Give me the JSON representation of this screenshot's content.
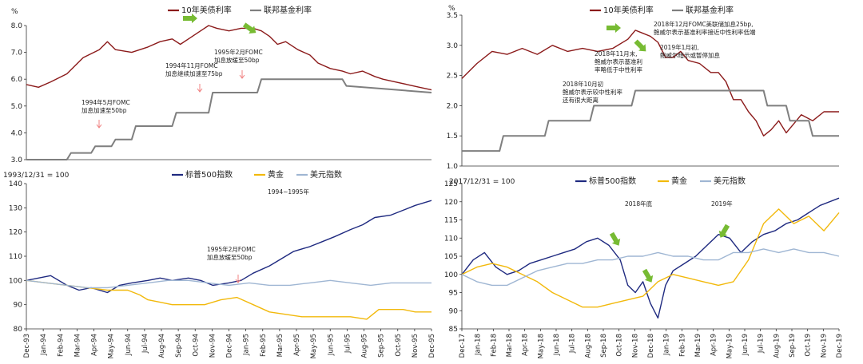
{
  "colors": {
    "treasury": "#8b1a1a",
    "fedfunds": "#7f7f7f",
    "sp500": "#1f2a80",
    "gold": "#f2b90c",
    "usd": "#9fb6d3",
    "arrow_green": "#77bb33",
    "arrow_red": "#f08080"
  },
  "chart_data": [
    {
      "id": "tl",
      "type": "line",
      "unit_label": "%",
      "ylim": [
        3.0,
        8.0
      ],
      "yticks": [
        "3.0",
        "4.0",
        "5.0",
        "6.0",
        "7.0",
        "8.0"
      ],
      "series": [
        {
          "name": "10年美债利率",
          "color_key": "treasury",
          "x": [
            0,
            0.03,
            0.06,
            0.1,
            0.14,
            0.18,
            0.2,
            0.22,
            0.26,
            0.3,
            0.33,
            0.36,
            0.38,
            0.4,
            0.43,
            0.45,
            0.47,
            0.5,
            0.53,
            0.56,
            0.58,
            0.6,
            0.62,
            0.64,
            0.67,
            0.7,
            0.72,
            0.75,
            0.78,
            0.8,
            0.83,
            0.86,
            0.88,
            0.91,
            0.94,
            0.97,
            1
          ],
          "y": [
            5.8,
            5.7,
            5.9,
            6.2,
            6.8,
            7.1,
            7.4,
            7.1,
            7.0,
            7.2,
            7.4,
            7.5,
            7.3,
            7.5,
            7.8,
            8.0,
            7.9,
            7.8,
            7.9,
            7.9,
            7.8,
            7.6,
            7.3,
            7.4,
            7.1,
            6.9,
            6.6,
            6.4,
            6.3,
            6.2,
            6.3,
            6.1,
            6.0,
            5.9,
            5.8,
            5.7,
            5.6
          ]
        },
        {
          "name": "联邦基金利率",
          "color_key": "fedfunds",
          "x": [
            0,
            0.04,
            0.1,
            0.11,
            0.16,
            0.17,
            0.21,
            0.22,
            0.26,
            0.27,
            0.36,
            0.37,
            0.45,
            0.46,
            0.57,
            0.58,
            0.78,
            0.79,
            1
          ],
          "y": [
            3.0,
            3.0,
            3.0,
            3.25,
            3.25,
            3.5,
            3.5,
            3.75,
            3.75,
            4.25,
            4.25,
            4.75,
            4.75,
            5.5,
            5.5,
            6.0,
            6.0,
            5.75,
            5.5
          ]
        }
      ],
      "x_labels": [],
      "annotations": [
        {
          "text": "1994年5月FOMC",
          "text2": "加息加速至50bp"
        },
        {
          "text": "1994年11月FOMC",
          "text2": "加息继续加速至75bp"
        },
        {
          "text": "1995年2月FOMC",
          "text2": "加息放缓至50bp"
        }
      ]
    },
    {
      "id": "tr",
      "type": "line",
      "unit_label": "%",
      "ylim": [
        1.0,
        3.5
      ],
      "yticks": [
        "1.0",
        "1.5",
        "2.0",
        "2.5",
        "3.0",
        "3.5"
      ],
      "series": [
        {
          "name": "10年美债利率",
          "color_key": "treasury",
          "x": [
            0,
            0.04,
            0.08,
            0.12,
            0.16,
            0.2,
            0.24,
            0.28,
            0.32,
            0.36,
            0.4,
            0.44,
            0.46,
            0.48,
            0.5,
            0.52,
            0.54,
            0.56,
            0.58,
            0.6,
            0.63,
            0.66,
            0.68,
            0.7,
            0.72,
            0.74,
            0.76,
            0.78,
            0.8,
            0.82,
            0.84,
            0.86,
            0.88,
            0.9,
            0.93,
            0.96,
            1
          ],
          "y": [
            2.45,
            2.7,
            2.9,
            2.85,
            2.95,
            2.85,
            3.0,
            2.9,
            2.95,
            2.9,
            2.95,
            3.1,
            3.25,
            3.2,
            3.15,
            3.05,
            2.8,
            2.8,
            2.9,
            2.75,
            2.7,
            2.55,
            2.55,
            2.4,
            2.1,
            2.1,
            1.9,
            1.75,
            1.5,
            1.6,
            1.75,
            1.55,
            1.7,
            1.85,
            1.75,
            1.9,
            1.9
          ]
        },
        {
          "name": "联邦基金利率",
          "color_key": "fedfunds",
          "x": [
            0,
            0.1,
            0.11,
            0.22,
            0.23,
            0.34,
            0.35,
            0.45,
            0.46,
            0.55,
            0.56,
            0.8,
            0.81,
            0.86,
            0.87,
            0.92,
            0.93,
            1
          ],
          "y": [
            1.25,
            1.25,
            1.5,
            1.5,
            1.75,
            1.75,
            2.0,
            2.0,
            2.25,
            2.25,
            2.25,
            2.25,
            2.0,
            2.0,
            1.75,
            1.75,
            1.5,
            1.5
          ]
        }
      ],
      "x_labels": [],
      "annotations": [
        {
          "text": "2018年12月FOMC美联储加息25bp,",
          "text2": "鲍威尔表示基准利率接近中性利率低端"
        },
        {
          "text": "2018年11月末,",
          "text2": "鲍威尔表示基准利",
          "text3": "率略低于中性利率"
        },
        {
          "text": "2019年1月初,",
          "text2": "鲍威尔暗示或暂停加息"
        },
        {
          "text": "2018年10月初",
          "text2": "鲍威尔表示较中性利率",
          "text3": "还有很大距离"
        }
      ]
    },
    {
      "id": "bl",
      "type": "line",
      "base_label": "1993/12/31 = 100",
      "ylim": [
        80,
        140
      ],
      "yticks": [
        "80",
        "90",
        "100",
        "110",
        "120",
        "130",
        "140"
      ],
      "series": [
        {
          "name": "标普500指数",
          "color_key": "sp500",
          "x": [
            0,
            0.03,
            0.06,
            0.1,
            0.13,
            0.16,
            0.2,
            0.23,
            0.26,
            0.3,
            0.33,
            0.36,
            0.4,
            0.43,
            0.46,
            0.5,
            0.53,
            0.56,
            0.6,
            0.63,
            0.66,
            0.7,
            0.73,
            0.76,
            0.8,
            0.83,
            0.86,
            0.9,
            0.93,
            0.96,
            1
          ],
          "y": [
            100,
            101,
            102,
            98,
            96,
            97,
            95,
            98,
            99,
            100,
            101,
            100,
            101,
            100,
            98,
            99,
            100,
            103,
            106,
            109,
            112,
            114,
            116,
            118,
            121,
            123,
            126,
            127,
            129,
            131,
            133
          ]
        },
        {
          "name": "黄金",
          "color_key": "gold",
          "x": [
            0,
            0.05,
            0.1,
            0.15,
            0.2,
            0.25,
            0.28,
            0.3,
            0.33,
            0.36,
            0.4,
            0.44,
            0.48,
            0.52,
            0.56,
            0.6,
            0.64,
            0.68,
            0.72,
            0.76,
            0.8,
            0.84,
            0.87,
            0.9,
            0.93,
            0.96,
            1
          ],
          "y": [
            100,
            99,
            98,
            97,
            96,
            96,
            94,
            92,
            91,
            90,
            90,
            90,
            92,
            93,
            90,
            87,
            86,
            85,
            85,
            85,
            85,
            84,
            88,
            88,
            88,
            87,
            87
          ]
        },
        {
          "name": "美元指数",
          "color_key": "usd",
          "x": [
            0,
            0.05,
            0.1,
            0.15,
            0.2,
            0.25,
            0.3,
            0.35,
            0.4,
            0.45,
            0.5,
            0.55,
            0.6,
            0.65,
            0.7,
            0.75,
            0.8,
            0.85,
            0.9,
            0.95,
            1
          ],
          "y": [
            100,
            99,
            98,
            97,
            97,
            98,
            99,
            100,
            100,
            99,
            98,
            99,
            98,
            98,
            99,
            100,
            99,
            98,
            99,
            99,
            99
          ]
        }
      ],
      "x_labels": [
        "Dec-93",
        "Jan-94",
        "Feb-94",
        "Mar-94",
        "Apr-94",
        "May-94",
        "Jun-94",
        "Jul-94",
        "Aug-94",
        "Sep-94",
        "Oct-94",
        "Nov-94",
        "Dec-94",
        "Jan-95",
        "Feb-95",
        "Mar-95",
        "Apr-95",
        "May-95",
        "Jun-95",
        "Jul-95",
        "Aug-95",
        "Sep-95",
        "Oct-95",
        "Nov-95",
        "Dec-95"
      ],
      "annotations": [
        {
          "text": "1994~1995年"
        },
        {
          "text": "1995年2月FOMC",
          "text2": "加息放缓至50bp"
        }
      ]
    },
    {
      "id": "br",
      "type": "line",
      "base_label": "2017/12/31 = 100",
      "ylim": [
        85,
        125
      ],
      "yticks": [
        "85",
        "90",
        "95",
        "100",
        "105",
        "110",
        "115",
        "120",
        "125"
      ],
      "series": [
        {
          "name": "标普500指数",
          "color_key": "sp500",
          "x": [
            0,
            0.03,
            0.06,
            0.09,
            0.12,
            0.15,
            0.18,
            0.21,
            0.24,
            0.27,
            0.3,
            0.33,
            0.36,
            0.39,
            0.42,
            0.44,
            0.46,
            0.48,
            0.5,
            0.52,
            0.54,
            0.56,
            0.59,
            0.62,
            0.65,
            0.68,
            0.71,
            0.74,
            0.77,
            0.8,
            0.83,
            0.86,
            0.89,
            0.92,
            0.95,
            1
          ],
          "y": [
            100,
            104,
            106,
            102,
            100,
            101,
            103,
            104,
            105,
            106,
            107,
            109,
            110,
            108,
            104,
            97,
            95,
            98,
            92,
            88,
            97,
            101,
            103,
            105,
            108,
            111,
            110,
            106,
            109,
            111,
            112,
            114,
            115,
            117,
            119,
            121
          ]
        },
        {
          "name": "黄金",
          "color_key": "gold",
          "x": [
            0,
            0.04,
            0.08,
            0.12,
            0.16,
            0.2,
            0.24,
            0.28,
            0.32,
            0.36,
            0.4,
            0.44,
            0.48,
            0.52,
            0.56,
            0.6,
            0.64,
            0.68,
            0.72,
            0.76,
            0.8,
            0.84,
            0.88,
            0.92,
            0.96,
            1
          ],
          "y": [
            100,
            102,
            103,
            102,
            100,
            98,
            95,
            93,
            91,
            91,
            92,
            93,
            94,
            98,
            100,
            99,
            98,
            97,
            98,
            104,
            114,
            118,
            114,
            116,
            112,
            117
          ]
        },
        {
          "name": "美元指数",
          "color_key": "usd",
          "x": [
            0,
            0.04,
            0.08,
            0.12,
            0.16,
            0.2,
            0.24,
            0.28,
            0.32,
            0.36,
            0.4,
            0.44,
            0.48,
            0.52,
            0.56,
            0.6,
            0.64,
            0.68,
            0.72,
            0.76,
            0.8,
            0.84,
            0.88,
            0.92,
            0.96,
            1
          ],
          "y": [
            100,
            98,
            97,
            97,
            99,
            101,
            102,
            103,
            103,
            104,
            104,
            105,
            105,
            106,
            105,
            105,
            104,
            104,
            106,
            106,
            107,
            106,
            107,
            106,
            106,
            105
          ]
        }
      ],
      "x_labels": [
        "Dec-17",
        "Jan-18",
        "Feb-18",
        "Mar-18",
        "Apr-18",
        "May-18",
        "Jun-18",
        "Jul-18",
        "Aug-18",
        "Sep-18",
        "Oct-18",
        "Nov-18",
        "Dec-18",
        "Jan-19",
        "Feb-19",
        "Mar-19",
        "Apr-19",
        "May-19",
        "Jun-19",
        "Jul-19",
        "Aug-19",
        "Sep-19",
        "Oct-19",
        "Nov-19",
        "Dec-19"
      ],
      "annotations": [
        {
          "text": "2018年底"
        },
        {
          "text": "2019年"
        }
      ]
    }
  ]
}
